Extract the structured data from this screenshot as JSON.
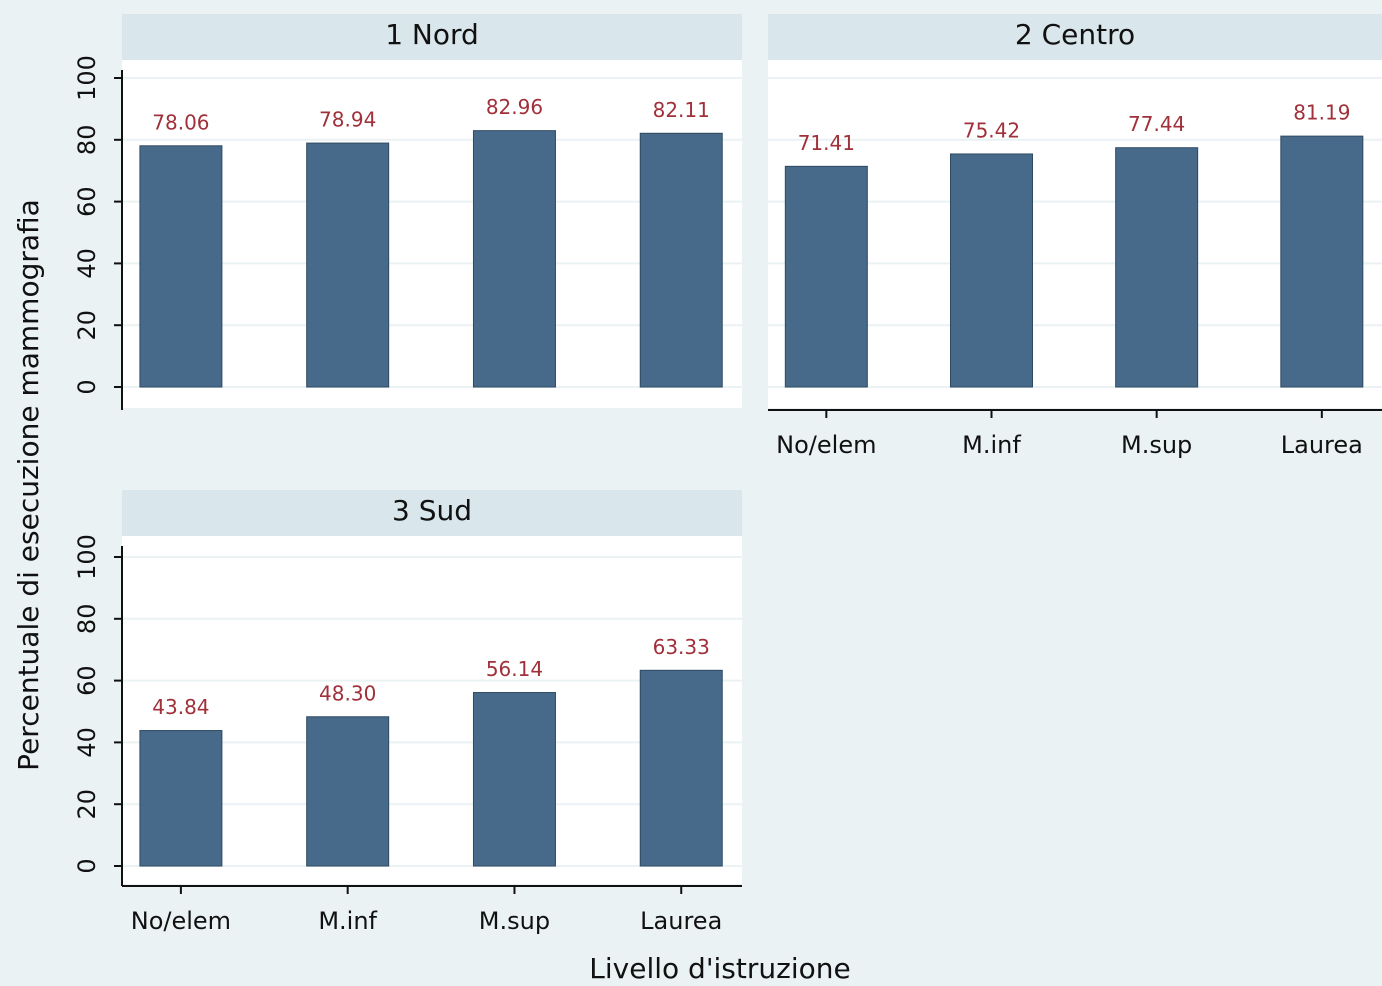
{
  "y_label": "Percentuale di esecuzione mammografia",
  "x_label": "Livello d'istruzione",
  "chart_data": [
    {
      "type": "bar",
      "title": "1 Nord",
      "color": "#476a8a",
      "values": [
        78.06,
        78.94,
        82.96,
        82.11
      ],
      "value_labels": [
        "78.06",
        "78.94",
        "82.96",
        "82.11"
      ],
      "ylim": [
        0,
        100
      ],
      "yticks": [
        0,
        20,
        40,
        60,
        80,
        100
      ],
      "grid": true
    },
    {
      "type": "bar",
      "title": "2 Centro",
      "color": "#476a8a",
      "categories": [
        "No/elem",
        "M.inf",
        "M.sup",
        "Laurea"
      ],
      "values": [
        71.41,
        75.42,
        77.44,
        81.19
      ],
      "value_labels": [
        "71.41",
        "75.42",
        "77.44",
        "81.19"
      ],
      "ylim": [
        0,
        100
      ],
      "yticks": [
        0,
        20,
        40,
        60,
        80,
        100
      ],
      "grid": true
    },
    {
      "type": "bar",
      "title": "3 Sud",
      "color": "#476a8a",
      "categories": [
        "No/elem",
        "M.inf",
        "M.sup",
        "Laurea"
      ],
      "values": [
        43.84,
        48.3,
        56.14,
        63.33
      ],
      "value_labels": [
        "43.84",
        "48.30",
        "56.14",
        "63.33"
      ],
      "ylim": [
        0,
        100
      ],
      "yticks": [
        0,
        20,
        40,
        60,
        80,
        100
      ],
      "grid": true
    }
  ]
}
